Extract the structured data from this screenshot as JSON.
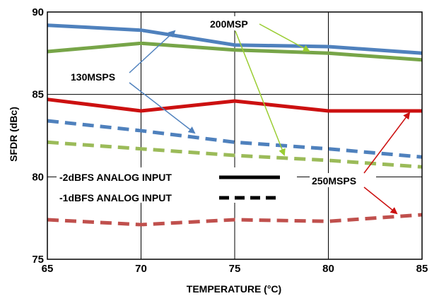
{
  "chart_data": {
    "type": "line",
    "xlabel": "TEMPERATURE (°C)",
    "ylabel": "SFDR (dBc)",
    "xlim": [
      65,
      85
    ],
    "ylim": [
      75,
      90
    ],
    "x_ticks": [
      "65",
      "70",
      "75",
      "80",
      "85"
    ],
    "y_ticks": [
      "75",
      "80",
      "85",
      "90"
    ],
    "grid": true,
    "x": [
      65,
      70,
      75,
      80,
      85
    ],
    "series": [
      {
        "key": "130-solid",
        "color": "#4f81bd",
        "style": "solid",
        "values": [
          89.2,
          88.9,
          88.0,
          87.9,
          87.5
        ]
      },
      {
        "key": "200-solid",
        "color": "#77a548",
        "style": "solid",
        "values": [
          87.6,
          88.1,
          87.7,
          87.5,
          87.1
        ]
      },
      {
        "key": "250-solid",
        "color": "#cc1010",
        "style": "solid",
        "values": [
          84.7,
          84.0,
          84.6,
          84.0,
          84.0
        ]
      },
      {
        "key": "130-dashed",
        "color": "#4f81bd",
        "style": "dashed",
        "values": [
          83.4,
          82.8,
          82.1,
          81.7,
          81.2
        ]
      },
      {
        "key": "200-dashed",
        "color": "#9bbb59",
        "style": "dashed",
        "values": [
          82.1,
          81.7,
          81.3,
          81.0,
          80.6
        ]
      },
      {
        "key": "250-dashed",
        "color": "#c0504d",
        "style": "dashed",
        "values": [
          77.4,
          77.1,
          77.4,
          77.3,
          77.7
        ]
      }
    ],
    "legend": {
      "solid_label": "-2dBFS ANALOG INPUT",
      "dashed_label": "-1dBFS ANALOG INPUT"
    },
    "annotations": {
      "label_130": "130MSPS",
      "label_200": "200MSP",
      "label_250": "250MSPS"
    },
    "arrow_colors": {
      "130": "#4f81bd",
      "200": "#9acd32",
      "250": "#cc1010"
    }
  }
}
